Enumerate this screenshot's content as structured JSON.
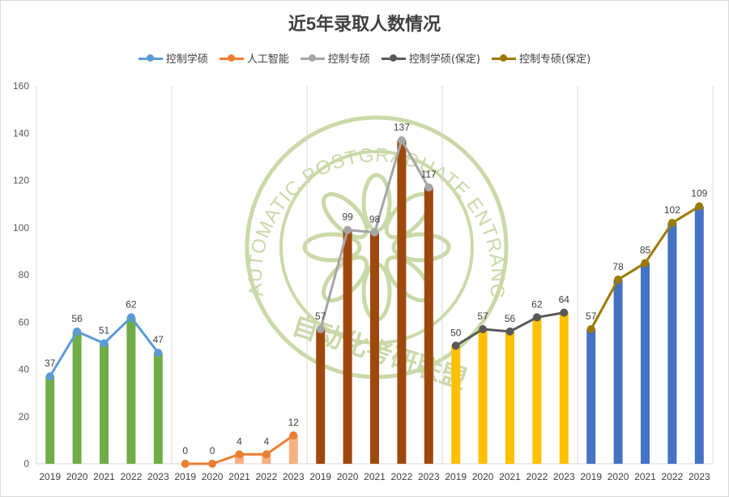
{
  "chart_data": {
    "type": "bar",
    "title": "近5年录取人数情况",
    "ylim": [
      0,
      160
    ],
    "yticks": [
      0,
      20,
      40,
      60,
      80,
      100,
      120,
      140,
      160
    ],
    "grid": false,
    "legend_position": "top",
    "categories": [
      "2019",
      "2020",
      "2021",
      "2022",
      "2023"
    ],
    "series": [
      {
        "name": "控制学硕",
        "values": [
          37,
          56,
          51,
          62,
          47
        ],
        "bar_color": "#70ad47",
        "line_color": "#5b9bd5"
      },
      {
        "name": "人工智能",
        "values": [
          0,
          0,
          4,
          4,
          12
        ],
        "bar_color": "#f4b183",
        "line_color": "#ed7d31"
      },
      {
        "name": "控制专硕",
        "values": [
          57,
          99,
          98,
          137,
          117
        ],
        "bar_color": "#9e480e",
        "line_color": "#a5a5a5"
      },
      {
        "name": "控制学硕(保定)",
        "values": [
          50,
          57,
          56,
          62,
          64
        ],
        "bar_color": "#ffc000",
        "line_color": "#595959"
      },
      {
        "name": "控制专硕(保定)",
        "values": [
          57,
          78,
          85,
          102,
          109
        ],
        "bar_color": "#4472c4",
        "line_color": "#9c7a00"
      }
    ]
  },
  "watermark": {
    "outer_text": "AUTOMATIC POSTGRADUATE ENTRANCE EXAMINATION ALLIANCE",
    "inner_text": "自动化考研联盟",
    "color": "#c9d9a8"
  }
}
